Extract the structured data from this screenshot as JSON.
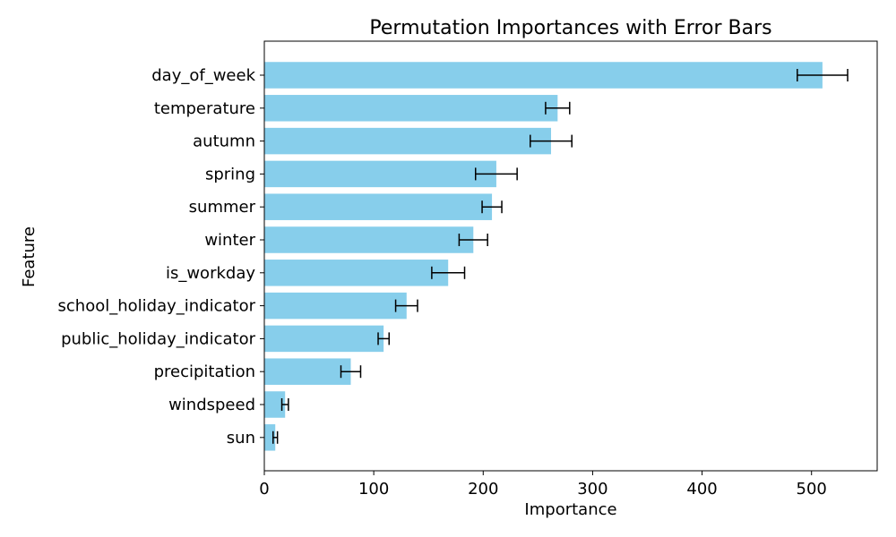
{
  "chart_data": {
    "type": "bar",
    "orientation": "horizontal",
    "title": "Permutation Importances with Error Bars",
    "xlabel": "Importance",
    "ylabel": "Feature",
    "xlim": [
      0,
      560
    ],
    "x_ticks": [
      0,
      100,
      200,
      300,
      400,
      500
    ],
    "grid": false,
    "legend": "none",
    "colors": {
      "bar": "#87CEEB",
      "error_bar": "#000000"
    },
    "categories": [
      "day_of_week",
      "temperature",
      "autumn",
      "spring",
      "summer",
      "winter",
      "is_workday",
      "school_holiday_indicator",
      "public_holiday_indicator",
      "precipitation",
      "windspeed",
      "sun"
    ],
    "values": [
      510,
      268,
      262,
      212,
      208,
      191,
      168,
      130,
      109,
      79,
      19,
      10
    ],
    "errors": [
      23,
      11,
      19,
      19,
      9,
      13,
      15,
      10,
      5,
      9,
      3,
      2
    ]
  }
}
